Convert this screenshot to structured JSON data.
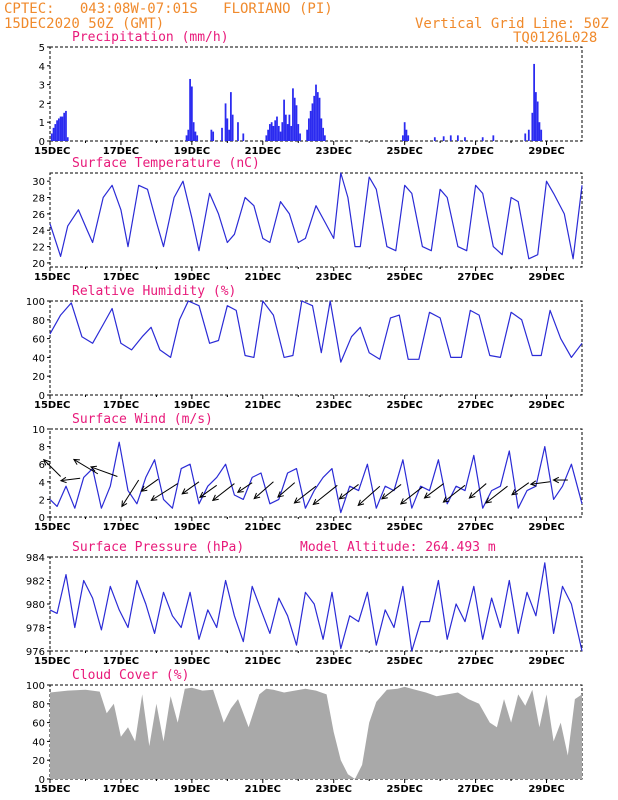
{
  "header": {
    "line1": "CPTEC:   043:08W-07:01S   FLORIANO (PI)",
    "line2": "15DEC2020 50Z (GMT)",
    "right1": "Vertical Grid Line: 50Z",
    "right2": "TQ0126L028"
  },
  "colors": {
    "line": "#2b2bd6",
    "bar": "#2b2bf0",
    "cloud": "#a9a9a9",
    "title": "#e8197a",
    "header": "#f08a2c"
  },
  "date_ticks": [
    "15DEC",
    "17DEC",
    "19DEC",
    "21DEC",
    "23DEC",
    "25DEC",
    "27DEC",
    "29DEC"
  ],
  "chart_data": [
    {
      "type": "bar",
      "title": "Precipitation (mm/h)",
      "ylim": [
        0,
        5
      ],
      "yticks": [
        0,
        1,
        2,
        3,
        4,
        5
      ],
      "xlim_days": [
        0,
        15
      ],
      "points": [
        [
          0.05,
          0.4
        ],
        [
          0.1,
          0.7
        ],
        [
          0.15,
          0.9
        ],
        [
          0.2,
          1.1
        ],
        [
          0.25,
          1.2
        ],
        [
          0.3,
          1.3
        ],
        [
          0.35,
          1.3
        ],
        [
          0.4,
          1.5
        ],
        [
          0.45,
          1.6
        ],
        [
          0.5,
          0.2
        ],
        [
          3.85,
          0.3
        ],
        [
          3.9,
          0.6
        ],
        [
          3.95,
          3.3
        ],
        [
          4.0,
          2.9
        ],
        [
          4.05,
          1.0
        ],
        [
          4.1,
          0.5
        ],
        [
          4.15,
          0.3
        ],
        [
          4.55,
          0.6
        ],
        [
          4.6,
          0.5
        ],
        [
          4.85,
          0.7
        ],
        [
          4.95,
          2.0
        ],
        [
          5.0,
          1.2
        ],
        [
          5.05,
          0.6
        ],
        [
          5.1,
          2.6
        ],
        [
          5.15,
          1.4
        ],
        [
          5.3,
          1.0
        ],
        [
          5.45,
          0.4
        ],
        [
          6.1,
          0.3
        ],
        [
          6.15,
          0.6
        ],
        [
          6.2,
          0.9
        ],
        [
          6.25,
          1.0
        ],
        [
          6.3,
          0.8
        ],
        [
          6.35,
          1.1
        ],
        [
          6.4,
          1.3
        ],
        [
          6.45,
          0.8
        ],
        [
          6.5,
          0.5
        ],
        [
          6.55,
          1.0
        ],
        [
          6.6,
          2.2
        ],
        [
          6.65,
          1.4
        ],
        [
          6.7,
          0.9
        ],
        [
          6.75,
          1.4
        ],
        [
          6.8,
          0.8
        ],
        [
          6.85,
          2.8
        ],
        [
          6.9,
          2.3
        ],
        [
          6.95,
          1.9
        ],
        [
          7.0,
          0.9
        ],
        [
          7.05,
          0.4
        ],
        [
          7.25,
          0.6
        ],
        [
          7.3,
          1.2
        ],
        [
          7.35,
          1.6
        ],
        [
          7.4,
          2.0
        ],
        [
          7.45,
          2.4
        ],
        [
          7.5,
          3.0
        ],
        [
          7.55,
          2.6
        ],
        [
          7.6,
          2.3
        ],
        [
          7.65,
          1.2
        ],
        [
          7.7,
          0.7
        ],
        [
          7.75,
          0.3
        ],
        [
          9.95,
          0.3
        ],
        [
          10.0,
          1.0
        ],
        [
          10.05,
          0.6
        ],
        [
          10.1,
          0.3
        ],
        [
          10.85,
          0.2
        ],
        [
          11.1,
          0.25
        ],
        [
          11.3,
          0.3
        ],
        [
          11.5,
          0.3
        ],
        [
          11.7,
          0.2
        ],
        [
          12.2,
          0.2
        ],
        [
          12.5,
          0.3
        ],
        [
          13.4,
          0.4
        ],
        [
          13.5,
          0.6
        ],
        [
          13.6,
          1.5
        ],
        [
          13.65,
          4.1
        ],
        [
          13.7,
          2.6
        ],
        [
          13.75,
          2.1
        ],
        [
          13.8,
          1.0
        ],
        [
          13.85,
          0.6
        ]
      ]
    },
    {
      "type": "line",
      "title": "Surface Temperature (nC)",
      "ylim": [
        19.5,
        31
      ],
      "yticks": [
        20,
        22,
        24,
        26,
        28,
        30
      ],
      "xlim_days": [
        0,
        15
      ],
      "x_days": [
        0,
        0.3,
        0.5,
        0.8,
        1.05,
        1.2,
        1.5,
        1.75,
        2.0,
        2.2,
        2.5,
        2.75,
        3.0,
        3.2,
        3.5,
        3.75,
        4.0,
        4.2,
        4.5,
        4.75,
        5.0,
        5.2,
        5.5,
        5.75,
        6.0,
        6.2,
        6.5,
        6.75,
        7.0,
        7.2,
        7.5,
        7.75,
        8.0,
        8.2,
        8.4,
        8.6,
        8.75,
        9.0,
        9.2,
        9.5,
        9.75,
        10.0,
        10.2,
        10.5,
        10.75,
        11.0,
        11.2,
        11.5,
        11.75,
        12.0,
        12.2,
        12.5,
        12.75,
        13.0,
        13.2,
        13.5,
        13.75,
        14.0,
        14.2,
        14.5,
        14.75,
        15.0
      ],
      "values": [
        24.8,
        20.8,
        24.5,
        26.5,
        24.0,
        22.5,
        28.0,
        29.5,
        26.5,
        22.0,
        29.5,
        29.0,
        25.0,
        22.0,
        28.0,
        30.0,
        25.5,
        21.5,
        28.5,
        26.0,
        22.5,
        23.5,
        28.0,
        27.0,
        23.0,
        22.5,
        27.5,
        26.0,
        22.5,
        23.0,
        27.0,
        25.0,
        23.0,
        31.0,
        28.0,
        22.0,
        22.0,
        30.5,
        29.0,
        22.0,
        21.5,
        29.5,
        28.5,
        22.0,
        21.5,
        29.0,
        28.0,
        22.0,
        21.5,
        29.5,
        28.5,
        22.0,
        21.0,
        28.0,
        27.5,
        20.5,
        21.0,
        30.0,
        28.5,
        26.0,
        20.5,
        29.5
      ]
    },
    {
      "type": "line",
      "title": "Relative Humidity (%)",
      "ylim": [
        0,
        100
      ],
      "yticks": [
        0,
        20,
        40,
        60,
        80,
        100
      ],
      "xlim_days": [
        0,
        15
      ],
      "x_days": [
        0,
        0.3,
        0.6,
        0.9,
        1.2,
        1.5,
        1.75,
        2.0,
        2.3,
        2.6,
        2.85,
        3.1,
        3.4,
        3.65,
        3.9,
        4.2,
        4.5,
        4.75,
        5.0,
        5.25,
        5.5,
        5.75,
        6.0,
        6.3,
        6.6,
        6.85,
        7.1,
        7.4,
        7.65,
        7.9,
        8.2,
        8.5,
        8.75,
        9.0,
        9.3,
        9.6,
        9.85,
        10.1,
        10.4,
        10.7,
        11.0,
        11.3,
        11.6,
        11.85,
        12.1,
        12.4,
        12.7,
        13.0,
        13.3,
        13.6,
        13.85,
        14.1,
        14.4,
        14.7,
        15.0
      ],
      "values": [
        65,
        85,
        98,
        62,
        55,
        75,
        92,
        55,
        48,
        62,
        72,
        48,
        40,
        80,
        100,
        95,
        55,
        58,
        95,
        90,
        42,
        40,
        100,
        85,
        40,
        42,
        100,
        95,
        45,
        100,
        35,
        62,
        72,
        45,
        38,
        82,
        85,
        38,
        38,
        88,
        82,
        40,
        40,
        90,
        85,
        42,
        40,
        88,
        80,
        42,
        42,
        90,
        60,
        40,
        55
      ]
    },
    {
      "type": "line",
      "title": "Surface Wind (m/s)",
      "ylim": [
        0,
        10
      ],
      "yticks": [
        0,
        2,
        4,
        6,
        8,
        10
      ],
      "xlim_days": [
        0,
        15
      ],
      "x_days": [
        0,
        0.2,
        0.45,
        0.7,
        0.95,
        1.2,
        1.45,
        1.7,
        1.95,
        2.2,
        2.45,
        2.7,
        2.95,
        3.2,
        3.45,
        3.7,
        3.95,
        4.2,
        4.45,
        4.7,
        4.95,
        5.2,
        5.45,
        5.7,
        5.95,
        6.2,
        6.45,
        6.7,
        6.95,
        7.2,
        7.45,
        7.7,
        7.95,
        8.2,
        8.45,
        8.7,
        8.95,
        9.2,
        9.45,
        9.7,
        9.95,
        10.2,
        10.45,
        10.7,
        10.95,
        11.2,
        11.45,
        11.7,
        11.95,
        12.2,
        12.45,
        12.7,
        12.95,
        13.2,
        13.45,
        13.7,
        13.95,
        14.2,
        14.45,
        14.7,
        15.0
      ],
      "values": [
        2.0,
        1.2,
        3.5,
        1.0,
        4.5,
        5.5,
        1.0,
        3.5,
        8.5,
        3.0,
        1.5,
        4.5,
        6.5,
        2.0,
        1.0,
        5.5,
        6.0,
        1.5,
        3.5,
        4.5,
        6.0,
        2.5,
        2.0,
        4.5,
        5.0,
        1.5,
        2.0,
        5.0,
        5.5,
        1.0,
        3.0,
        4.5,
        5.5,
        0.5,
        3.5,
        3.0,
        6.0,
        1.0,
        3.5,
        3.0,
        6.5,
        1.0,
        3.5,
        3.0,
        6.5,
        1.5,
        3.5,
        3.0,
        7.0,
        1.0,
        3.0,
        3.5,
        7.5,
        1.0,
        3.0,
        3.5,
        8.0,
        2.0,
        3.5,
        6.0,
        1.5
      ],
      "vectors": [
        {
          "x": 0.3,
          "y": 4.6,
          "u": -0.35,
          "v": 0.35
        },
        {
          "x": 0.85,
          "y": 4.4,
          "u": -0.4,
          "v": -0.05
        },
        {
          "x": 1.35,
          "y": 4.9,
          "u": -0.5,
          "v": 0.3
        },
        {
          "x": 1.9,
          "y": 4.6,
          "u": -0.55,
          "v": 0.2
        },
        {
          "x": 2.5,
          "y": 4.2,
          "u": -0.35,
          "v": -0.55
        },
        {
          "x": 3.05,
          "y": 4.3,
          "u": -0.35,
          "v": -0.25
        },
        {
          "x": 3.6,
          "y": 3.8,
          "u": -0.55,
          "v": -0.35
        },
        {
          "x": 4.2,
          "y": 4.0,
          "u": -0.35,
          "v": -0.25
        },
        {
          "x": 4.7,
          "y": 3.6,
          "u": -0.35,
          "v": -0.25
        },
        {
          "x": 5.2,
          "y": 3.8,
          "u": -0.45,
          "v": -0.35
        },
        {
          "x": 5.7,
          "y": 3.9,
          "u": -0.3,
          "v": -0.2
        },
        {
          "x": 6.3,
          "y": 4.0,
          "u": -0.4,
          "v": -0.35
        },
        {
          "x": 6.9,
          "y": 3.9,
          "u": -0.35,
          "v": -0.3
        },
        {
          "x": 7.5,
          "y": 3.5,
          "u": -0.45,
          "v": -0.35
        },
        {
          "x": 8.1,
          "y": 3.6,
          "u": -0.5,
          "v": -0.4
        },
        {
          "x": 8.7,
          "y": 3.7,
          "u": -0.4,
          "v": -0.3
        },
        {
          "x": 9.3,
          "y": 3.5,
          "u": -0.45,
          "v": -0.4
        },
        {
          "x": 9.9,
          "y": 3.7,
          "u": -0.4,
          "v": -0.3
        },
        {
          "x": 10.5,
          "y": 3.4,
          "u": -0.45,
          "v": -0.35
        },
        {
          "x": 11.1,
          "y": 3.8,
          "u": -0.4,
          "v": -0.3
        },
        {
          "x": 11.7,
          "y": 3.6,
          "u": -0.45,
          "v": -0.35
        },
        {
          "x": 12.3,
          "y": 3.8,
          "u": -0.35,
          "v": -0.3
        },
        {
          "x": 12.9,
          "y": 3.5,
          "u": -0.45,
          "v": -0.35
        },
        {
          "x": 13.5,
          "y": 3.9,
          "u": -0.35,
          "v": -0.25
        },
        {
          "x": 14.1,
          "y": 4.0,
          "u": -0.4,
          "v": -0.05
        },
        {
          "x": 14.6,
          "y": 4.2,
          "u": -0.3,
          "v": 0.0
        }
      ]
    },
    {
      "type": "line",
      "title": "Surface Pressure (hPa)",
      "subtitle": "Model Altitude: 264.493 m",
      "ylim": [
        976,
        984
      ],
      "yticks": [
        976,
        978,
        980,
        982,
        984
      ],
      "xlim_days": [
        0,
        15
      ],
      "x_days": [
        0,
        0.2,
        0.45,
        0.7,
        0.95,
        1.2,
        1.45,
        1.7,
        1.95,
        2.2,
        2.45,
        2.7,
        2.95,
        3.2,
        3.45,
        3.7,
        3.95,
        4.2,
        4.45,
        4.7,
        4.95,
        5.2,
        5.45,
        5.7,
        5.95,
        6.2,
        6.45,
        6.7,
        6.95,
        7.2,
        7.45,
        7.7,
        7.95,
        8.2,
        8.45,
        8.7,
        8.95,
        9.2,
        9.45,
        9.7,
        9.95,
        10.2,
        10.45,
        10.7,
        10.95,
        11.2,
        11.45,
        11.7,
        11.95,
        12.2,
        12.45,
        12.7,
        12.95,
        13.2,
        13.45,
        13.7,
        13.95,
        14.2,
        14.45,
        14.7,
        15.0
      ],
      "values": [
        979.5,
        979.2,
        982.5,
        978.0,
        982.0,
        980.5,
        977.8,
        981.5,
        979.5,
        978.0,
        982.0,
        980.0,
        977.5,
        981.0,
        979.0,
        978.0,
        981.0,
        977.0,
        979.5,
        978.0,
        982.0,
        979.0,
        976.8,
        981.5,
        979.5,
        977.5,
        980.5,
        979.0,
        976.5,
        981.0,
        980.0,
        977.0,
        981.0,
        976.2,
        979.0,
        978.5,
        981.0,
        976.5,
        979.5,
        978.0,
        981.5,
        976.0,
        978.5,
        978.5,
        982.0,
        977.0,
        980.0,
        978.5,
        981.5,
        977.0,
        980.5,
        978.0,
        982.0,
        977.5,
        981.0,
        979.0,
        983.5,
        977.5,
        981.5,
        980.0,
        976.0
      ]
    },
    {
      "type": "area",
      "title": "Cloud Cover (%)",
      "ylim": [
        0,
        100
      ],
      "yticks": [
        0,
        20,
        40,
        60,
        80,
        100
      ],
      "xlim_days": [
        0,
        15
      ],
      "x_days": [
        0,
        0.5,
        1.0,
        1.4,
        1.6,
        1.8,
        2.0,
        2.2,
        2.4,
        2.6,
        2.8,
        3.0,
        3.2,
        3.4,
        3.6,
        3.8,
        4.0,
        4.3,
        4.6,
        4.9,
        5.1,
        5.3,
        5.6,
        5.9,
        6.1,
        6.3,
        6.6,
        6.9,
        7.2,
        7.5,
        7.8,
        8.0,
        8.2,
        8.4,
        8.6,
        8.8,
        9.0,
        9.2,
        9.5,
        9.8,
        10.0,
        10.3,
        10.6,
        10.9,
        11.2,
        11.5,
        11.8,
        12.1,
        12.4,
        12.6,
        12.8,
        13.0,
        13.2,
        13.4,
        13.6,
        13.8,
        14.0,
        14.2,
        14.4,
        14.6,
        14.8,
        15.0
      ],
      "values": [
        92,
        94,
        95,
        93,
        70,
        80,
        45,
        55,
        40,
        90,
        35,
        80,
        40,
        88,
        60,
        96,
        97,
        94,
        95,
        60,
        75,
        85,
        55,
        90,
        96,
        95,
        92,
        94,
        96,
        94,
        90,
        50,
        20,
        5,
        0,
        15,
        60,
        82,
        95,
        96,
        98,
        95,
        92,
        88,
        90,
        92,
        85,
        80,
        60,
        55,
        85,
        60,
        90,
        78,
        95,
        55,
        90,
        40,
        60,
        25,
        85,
        90
      ]
    }
  ]
}
